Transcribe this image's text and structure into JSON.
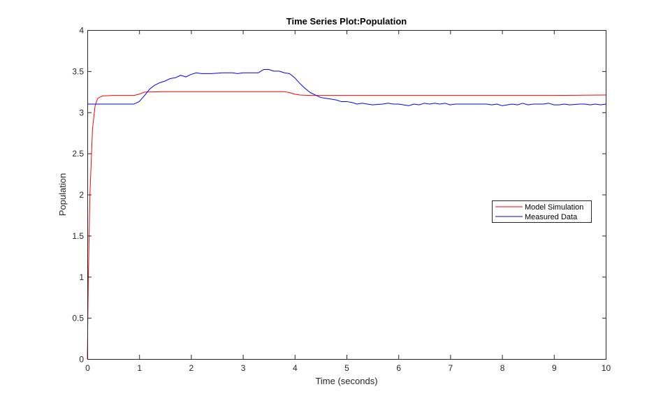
{
  "chart_data": {
    "type": "line",
    "title": "Time Series Plot:Population",
    "xlabel": "Time (seconds)",
    "ylabel": "Population",
    "xlim": [
      0,
      10
    ],
    "ylim": [
      0,
      4
    ],
    "xticks": [
      0,
      1,
      2,
      3,
      4,
      5,
      6,
      7,
      8,
      9,
      10
    ],
    "xtick_labels": [
      "0",
      "1",
      "2",
      "3",
      "4",
      "5",
      "6",
      "7",
      "8",
      "9",
      "10"
    ],
    "yticks": [
      0,
      0.5,
      1,
      1.5,
      2,
      2.5,
      3,
      3.5,
      4
    ],
    "ytick_labels": [
      "0",
      "0.5",
      "1",
      "1.5",
      "2",
      "2.5",
      "3",
      "3.5",
      "4"
    ],
    "grid": false,
    "legend_position": "right",
    "series": [
      {
        "name": "Model Simulation",
        "color": "#ff0000",
        "points": [
          [
            0,
            0
          ],
          [
            0.02,
            1.0
          ],
          [
            0.05,
            2.0
          ],
          [
            0.1,
            2.8
          ],
          [
            0.15,
            3.08
          ],
          [
            0.2,
            3.17
          ],
          [
            0.3,
            3.2
          ],
          [
            0.5,
            3.205
          ],
          [
            0.9,
            3.205
          ],
          [
            1.0,
            3.22
          ],
          [
            1.1,
            3.245
          ],
          [
            1.5,
            3.25
          ],
          [
            2,
            3.25
          ],
          [
            2.5,
            3.25
          ],
          [
            3,
            3.25
          ],
          [
            3.5,
            3.25
          ],
          [
            3.8,
            3.25
          ],
          [
            3.9,
            3.24
          ],
          [
            4.0,
            3.22
          ],
          [
            4.1,
            3.21
          ],
          [
            4.3,
            3.205
          ],
          [
            5,
            3.205
          ],
          [
            6,
            3.205
          ],
          [
            7,
            3.205
          ],
          [
            8,
            3.205
          ],
          [
            9,
            3.205
          ],
          [
            10,
            3.21
          ]
        ]
      },
      {
        "name": "Measured Data",
        "color": "#0000ff",
        "points": [
          [
            0,
            3.1
          ],
          [
            0.5,
            3.1
          ],
          [
            0.9,
            3.1
          ],
          [
            1.0,
            3.13
          ],
          [
            1.1,
            3.2
          ],
          [
            1.2,
            3.28
          ],
          [
            1.3,
            3.33
          ],
          [
            1.4,
            3.36
          ],
          [
            1.5,
            3.38
          ],
          [
            1.6,
            3.41
          ],
          [
            1.7,
            3.42
          ],
          [
            1.8,
            3.45
          ],
          [
            1.9,
            3.43
          ],
          [
            2.0,
            3.46
          ],
          [
            2.1,
            3.48
          ],
          [
            2.2,
            3.47
          ],
          [
            2.4,
            3.47
          ],
          [
            2.6,
            3.48
          ],
          [
            2.8,
            3.48
          ],
          [
            2.9,
            3.47
          ],
          [
            3.0,
            3.48
          ],
          [
            3.2,
            3.48
          ],
          [
            3.3,
            3.48
          ],
          [
            3.4,
            3.52
          ],
          [
            3.5,
            3.52
          ],
          [
            3.6,
            3.5
          ],
          [
            3.7,
            3.5
          ],
          [
            3.8,
            3.48
          ],
          [
            3.9,
            3.47
          ],
          [
            4.0,
            3.42
          ],
          [
            4.1,
            3.35
          ],
          [
            4.2,
            3.29
          ],
          [
            4.3,
            3.24
          ],
          [
            4.4,
            3.21
          ],
          [
            4.5,
            3.18
          ],
          [
            4.6,
            3.17
          ],
          [
            4.7,
            3.16
          ],
          [
            4.8,
            3.15
          ],
          [
            4.9,
            3.13
          ],
          [
            5.0,
            3.13
          ],
          [
            5.1,
            3.12
          ],
          [
            5.2,
            3.1
          ],
          [
            5.3,
            3.11
          ],
          [
            5.4,
            3.1
          ],
          [
            5.5,
            3.09
          ],
          [
            5.6,
            3.095
          ],
          [
            5.7,
            3.1
          ],
          [
            5.8,
            3.11
          ],
          [
            5.9,
            3.1
          ],
          [
            6.0,
            3.1
          ],
          [
            6.1,
            3.09
          ],
          [
            6.2,
            3.08
          ],
          [
            6.3,
            3.1
          ],
          [
            6.4,
            3.09
          ],
          [
            6.5,
            3.11
          ],
          [
            6.6,
            3.1
          ],
          [
            6.7,
            3.11
          ],
          [
            6.8,
            3.1
          ],
          [
            6.9,
            3.11
          ],
          [
            7.0,
            3.09
          ],
          [
            7.1,
            3.1
          ],
          [
            7.2,
            3.1
          ],
          [
            7.4,
            3.1
          ],
          [
            7.6,
            3.1
          ],
          [
            7.7,
            3.1
          ],
          [
            7.8,
            3.09
          ],
          [
            7.9,
            3.1
          ],
          [
            8.0,
            3.08
          ],
          [
            8.1,
            3.09
          ],
          [
            8.2,
            3.1
          ],
          [
            8.3,
            3.09
          ],
          [
            8.4,
            3.11
          ],
          [
            8.5,
            3.09
          ],
          [
            8.6,
            3.1
          ],
          [
            8.8,
            3.1
          ],
          [
            8.9,
            3.11
          ],
          [
            9.0,
            3.09
          ],
          [
            9.1,
            3.09
          ],
          [
            9.2,
            3.1
          ],
          [
            9.3,
            3.09
          ],
          [
            9.5,
            3.1
          ],
          [
            9.6,
            3.1
          ],
          [
            9.7,
            3.09
          ],
          [
            9.8,
            3.1
          ],
          [
            9.9,
            3.09
          ],
          [
            10,
            3.1
          ]
        ]
      }
    ]
  }
}
